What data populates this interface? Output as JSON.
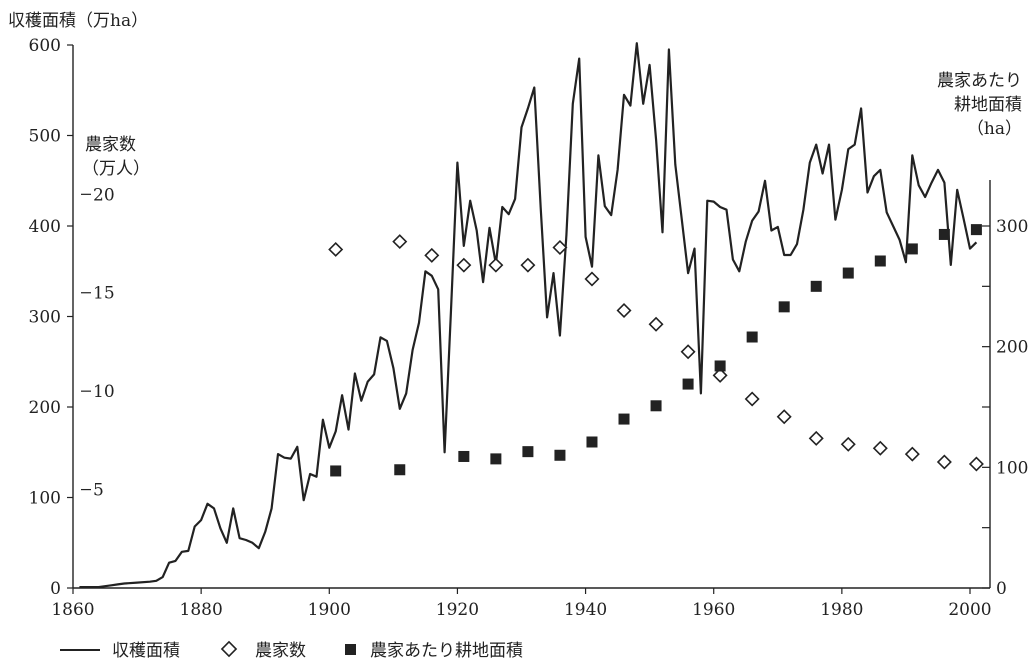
{
  "chart_data": {
    "type": "line",
    "axes": {
      "x": {
        "min": 1860,
        "max": 2000,
        "ticks": [
          1860,
          1880,
          1900,
          1920,
          1940,
          1960,
          1980,
          2000
        ]
      },
      "y_left": {
        "title": "収穫面積（万ha）",
        "min": 0,
        "max": 600,
        "ticks": [
          0,
          100,
          200,
          300,
          400,
          500,
          600
        ]
      },
      "y_mid": {
        "title_line1": "農家数",
        "title_line2": "（万人）",
        "ticks": [
          5,
          10,
          15,
          20
        ],
        "range_note": "0 at 0, 20 at 435 万ha level"
      },
      "y_right": {
        "title_line1": "農家あたり",
        "title_line2": "耕地面積",
        "title_line3": "（ha）",
        "min": 0,
        "max": 300,
        "ticks": [
          0,
          100,
          200,
          300
        ],
        "labeled_ticks": [
          0,
          100,
          200,
          300
        ]
      }
    },
    "legend": {
      "placement": "bottom",
      "items": [
        {
          "marker": "line",
          "label": "収穫面積"
        },
        {
          "marker": "open-diamond",
          "label": "農家数"
        },
        {
          "marker": "filled-square",
          "label": "農家あたり耕地面積"
        }
      ]
    },
    "series": [
      {
        "name": "収穫面積",
        "axis": "y_left",
        "style": "line",
        "points": [
          [
            1861,
            1
          ],
          [
            1863,
            1
          ],
          [
            1864,
            1
          ],
          [
            1865,
            2
          ],
          [
            1866,
            3
          ],
          [
            1867,
            4
          ],
          [
            1868,
            5
          ],
          [
            1870,
            6
          ],
          [
            1872,
            7
          ],
          [
            1873,
            8
          ],
          [
            1874,
            12
          ],
          [
            1875,
            28
          ],
          [
            1876,
            30
          ],
          [
            1877,
            40
          ],
          [
            1878,
            41
          ],
          [
            1879,
            68
          ],
          [
            1880,
            75
          ],
          [
            1881,
            93
          ],
          [
            1882,
            88
          ],
          [
            1883,
            66
          ],
          [
            1884,
            50
          ],
          [
            1885,
            88
          ],
          [
            1886,
            55
          ],
          [
            1887,
            53
          ],
          [
            1888,
            50
          ],
          [
            1889,
            44
          ],
          [
            1890,
            62
          ],
          [
            1891,
            88
          ],
          [
            1892,
            148
          ],
          [
            1893,
            144
          ],
          [
            1894,
            143
          ],
          [
            1895,
            156
          ],
          [
            1896,
            97
          ],
          [
            1897,
            126
          ],
          [
            1898,
            123
          ],
          [
            1899,
            186
          ],
          [
            1900,
            155
          ],
          [
            1901,
            173
          ],
          [
            1902,
            213
          ],
          [
            1903,
            175
          ],
          [
            1904,
            237
          ],
          [
            1905,
            207
          ],
          [
            1906,
            228
          ],
          [
            1907,
            236
          ],
          [
            1908,
            277
          ],
          [
            1909,
            273
          ],
          [
            1910,
            243
          ],
          [
            1911,
            198
          ],
          [
            1912,
            215
          ],
          [
            1913,
            263
          ],
          [
            1914,
            293
          ],
          [
            1915,
            350
          ],
          [
            1916,
            345
          ],
          [
            1917,
            330
          ],
          [
            1918,
            150
          ],
          [
            1919,
            307
          ],
          [
            1920,
            470
          ],
          [
            1921,
            378
          ],
          [
            1922,
            428
          ],
          [
            1923,
            395
          ],
          [
            1924,
            338
          ],
          [
            1925,
            398
          ],
          [
            1926,
            358
          ],
          [
            1927,
            421
          ],
          [
            1928,
            413
          ],
          [
            1929,
            430
          ],
          [
            1930,
            509
          ],
          [
            1931,
            530
          ],
          [
            1932,
            553
          ],
          [
            1933,
            420
          ],
          [
            1934,
            299
          ],
          [
            1935,
            348
          ],
          [
            1936,
            279
          ],
          [
            1937,
            390
          ],
          [
            1938,
            535
          ],
          [
            1939,
            585
          ],
          [
            1940,
            388
          ],
          [
            1941,
            355
          ],
          [
            1942,
            478
          ],
          [
            1943,
            422
          ],
          [
            1944,
            412
          ],
          [
            1945,
            462
          ],
          [
            1946,
            545
          ],
          [
            1947,
            533
          ],
          [
            1948,
            602
          ],
          [
            1949,
            535
          ],
          [
            1950,
            578
          ],
          [
            1951,
            495
          ],
          [
            1952,
            393
          ],
          [
            1953,
            595
          ],
          [
            1954,
            468
          ],
          [
            1955,
            408
          ],
          [
            1956,
            348
          ],
          [
            1957,
            375
          ],
          [
            1958,
            215
          ],
          [
            1959,
            428
          ],
          [
            1960,
            427
          ],
          [
            1961,
            421
          ],
          [
            1962,
            418
          ],
          [
            1963,
            363
          ],
          [
            1964,
            350
          ],
          [
            1965,
            383
          ],
          [
            1966,
            406
          ],
          [
            1967,
            416
          ],
          [
            1968,
            450
          ],
          [
            1969,
            395
          ],
          [
            1970,
            399
          ],
          [
            1971,
            368
          ],
          [
            1972,
            368
          ],
          [
            1973,
            380
          ],
          [
            1974,
            418
          ],
          [
            1975,
            470
          ],
          [
            1976,
            490
          ],
          [
            1977,
            458
          ],
          [
            1978,
            490
          ],
          [
            1979,
            407
          ],
          [
            1980,
            440
          ],
          [
            1981,
            485
          ],
          [
            1982,
            490
          ],
          [
            1983,
            530
          ],
          [
            1984,
            437
          ],
          [
            1985,
            455
          ],
          [
            1986,
            462
          ],
          [
            1987,
            415
          ],
          [
            1988,
            400
          ],
          [
            1989,
            385
          ],
          [
            1990,
            360
          ],
          [
            1991,
            478
          ],
          [
            1992,
            445
          ],
          [
            1993,
            432
          ],
          [
            1994,
            448
          ],
          [
            1995,
            462
          ],
          [
            1996,
            448
          ],
          [
            1997,
            357
          ],
          [
            1998,
            440
          ],
          [
            1999,
            408
          ],
          [
            2000,
            375
          ],
          [
            2001,
            382
          ]
        ]
      },
      {
        "name": "農家数",
        "axis": "y_mid",
        "style": "open-diamond",
        "points": [
          [
            1901,
            17.2
          ],
          [
            1911,
            17.6
          ],
          [
            1916,
            16.9
          ],
          [
            1921,
            16.4
          ],
          [
            1926,
            16.4
          ],
          [
            1931,
            16.4
          ],
          [
            1936,
            17.3
          ],
          [
            1941,
            15.7
          ],
          [
            1946,
            14.1
          ],
          [
            1951,
            13.4
          ],
          [
            1956,
            12.0
          ],
          [
            1961,
            10.8
          ],
          [
            1966,
            9.6
          ],
          [
            1971,
            8.7
          ],
          [
            1976,
            7.6
          ],
          [
            1981,
            7.3
          ],
          [
            1986,
            7.1
          ],
          [
            1991,
            6.8
          ],
          [
            1996,
            6.4
          ],
          [
            2001,
            6.3
          ]
        ]
      },
      {
        "name": "農家あたり耕地面積",
        "axis": "y_right",
        "style": "filled-square",
        "points": [
          [
            1901,
            97
          ],
          [
            1911,
            98
          ],
          [
            1921,
            109
          ],
          [
            1926,
            107
          ],
          [
            1931,
            113
          ],
          [
            1936,
            110
          ],
          [
            1941,
            121
          ],
          [
            1946,
            140
          ],
          [
            1951,
            151
          ],
          [
            1956,
            169
          ],
          [
            1961,
            184
          ],
          [
            1966,
            208
          ],
          [
            1971,
            233
          ],
          [
            1976,
            250
          ],
          [
            1981,
            261
          ],
          [
            1986,
            271
          ],
          [
            1991,
            281
          ],
          [
            1996,
            293
          ],
          [
            2001,
            297
          ]
        ]
      }
    ]
  }
}
